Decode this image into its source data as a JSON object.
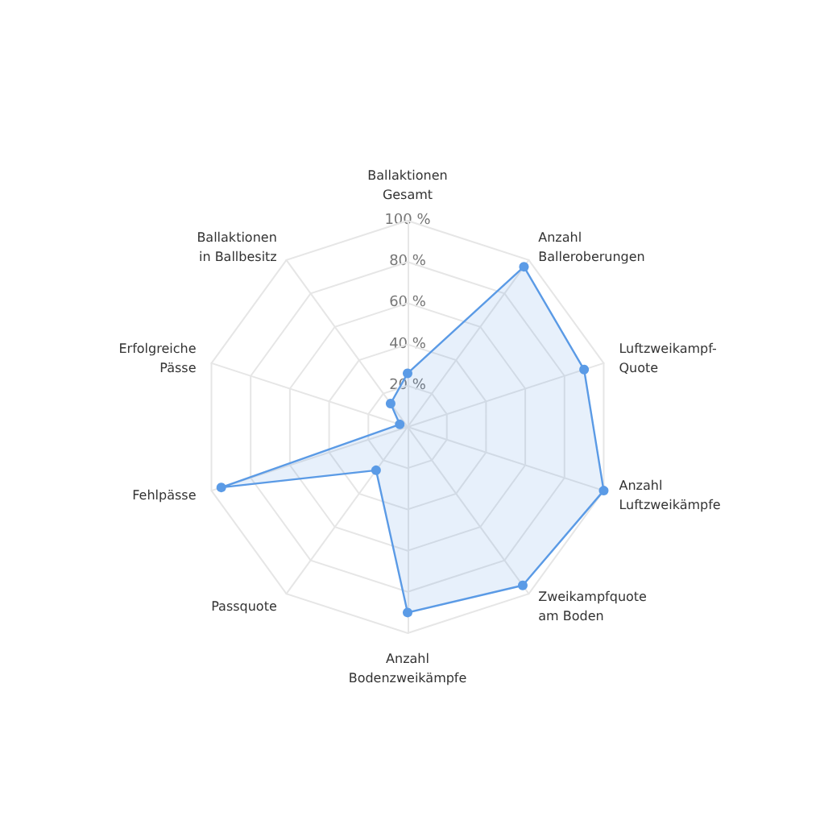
{
  "chart_data": {
    "type": "radar",
    "categories": [
      "Ballaktionen\nGesamt",
      "Anzahl\nBalleroberungen",
      "Luftzweikampf-\nQuote",
      "Anzahl\nLuftzweikämpfe",
      "Zweikampfquote\nam Boden",
      "Anzahl\nBodenzweikämpfe",
      "Passquote",
      "Fehlpässe",
      "Erfolgreiche\nPässe",
      "Ballaktionen\nin Ballbesitz"
    ],
    "series": [
      {
        "color": "#5b9be6",
        "values": [
          26,
          96,
          90,
          100,
          95,
          90,
          26,
          95,
          4,
          14
        ]
      }
    ],
    "ylim": [
      0,
      100
    ],
    "yticks": [
      {
        "value": 20,
        "label": "20 %"
      },
      {
        "value": 40,
        "label": "40 %"
      },
      {
        "value": 60,
        "label": "60 %"
      },
      {
        "value": 80,
        "label": "80 %"
      },
      {
        "value": 100,
        "label": "100 %"
      }
    ],
    "grid": true,
    "marker": "circle"
  }
}
